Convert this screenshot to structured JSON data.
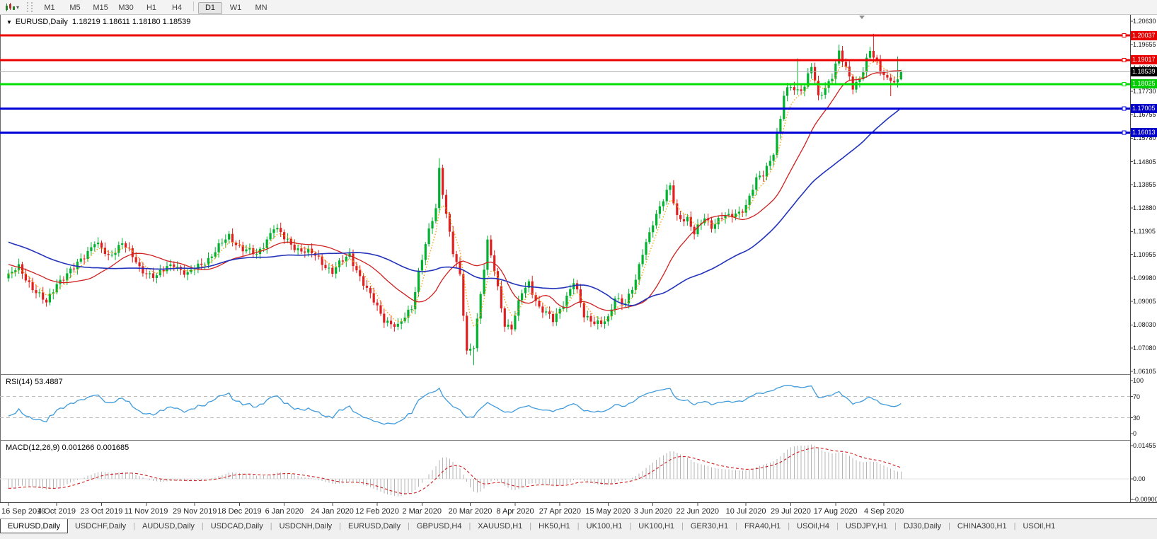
{
  "toolbar": {
    "timeframe_groups": [
      [
        "M1",
        "M5",
        "M15",
        "M30",
        "H1",
        "H4"
      ],
      [
        "D1",
        "W1",
        "MN"
      ]
    ],
    "active_timeframe": "D1",
    "dropdown_caret": "▾"
  },
  "title": {
    "dropdown_glyph": "▼",
    "symbol": "EURUSD,Daily",
    "ohlc_text": "1.18219 1.18611 1.18180 1.18539"
  },
  "rsi": {
    "text": "RSI(14) 53.4887",
    "axis_labels": [
      "100",
      "70",
      "30",
      "0"
    ],
    "axis_values": [
      100,
      70,
      30,
      0
    ],
    "guides": [
      70,
      30
    ],
    "line_color": "#3f9bdc"
  },
  "macd": {
    "text": "MACD(12,26,9) 0.001266 0.001685",
    "axis_labels": [
      "0.01455",
      "0.00",
      "-0.00900"
    ],
    "axis_values": [
      0.01455,
      0,
      -0.009
    ],
    "bar_color": "#b4b4b4",
    "signal_color": "#d02020"
  },
  "tabs": {
    "items": [
      "EURUSD,Daily",
      "USDCHF,Daily",
      "AUDUSD,Daily",
      "USDCAD,Daily",
      "USDCNH,Daily",
      "EURUSD,Daily",
      "GBPUSD,H4",
      "XAUUSD,H1",
      "HK50,H1",
      "UK100,H1",
      "UK100,H1",
      "GER30,H1",
      "FRA40,H1",
      "USOil,H4",
      "USDJPY,H1",
      "DJ30,Daily",
      "CHINA300,H1",
      "USOil,H1"
    ],
    "active_index": 0,
    "scroll_left": "◀",
    "scroll_right": "▶"
  },
  "chart_data": {
    "type": "candlestick",
    "symbol": "EURUSD",
    "timeframe": "Daily",
    "ohlc_current": {
      "open": 1.18219,
      "high": 1.18611,
      "low": 1.1818,
      "close": 1.18539
    },
    "ylim": [
      1.06105,
      1.2063
    ],
    "y_ticks": [
      1.2063,
      1.19655,
      1.1868,
      1.1773,
      1.16755,
      1.1578,
      1.14805,
      1.13855,
      1.1288,
      1.11905,
      1.10955,
      1.0998,
      1.09005,
      1.0803,
      1.0708,
      1.06105
    ],
    "x_date_ticks": [
      [
        0,
        "16 Sep 2019"
      ],
      [
        14,
        "4 Oct 2019"
      ],
      [
        27,
        "23 Oct 2019"
      ],
      [
        40,
        "11 Nov 2019"
      ],
      [
        54,
        "29 Nov 2019"
      ],
      [
        67,
        "18 Dec 2019"
      ],
      [
        80,
        "6 Jan 2020"
      ],
      [
        94,
        "24 Jan 2020"
      ],
      [
        107,
        "12 Feb 2020"
      ],
      [
        120,
        "2 Mar 2020"
      ],
      [
        134,
        "20 Mar 2020"
      ],
      [
        147,
        "8 Apr 2020"
      ],
      [
        160,
        "27 Apr 2020"
      ],
      [
        174,
        "15 May 2020"
      ],
      [
        187,
        "3 Jun 2020"
      ],
      [
        200,
        "22 Jun 2020"
      ],
      [
        214,
        "10 Jul 2020"
      ],
      [
        227,
        "29 Jul 2020"
      ],
      [
        240,
        "17 Aug 2020"
      ],
      [
        254,
        "4 Sep 2020"
      ]
    ],
    "days": 260,
    "last_close": 1.18539,
    "close_anchors": [
      [
        -50,
        1.1285
      ],
      [
        -35,
        1.1215
      ],
      [
        -20,
        1.113
      ],
      [
        -8,
        1.1035
      ],
      [
        0,
        1.1005
      ],
      [
        3,
        1.104
      ],
      [
        8,
        1.094
      ],
      [
        11,
        1.089
      ],
      [
        14,
        1.098
      ],
      [
        19,
        1.1035
      ],
      [
        25,
        1.115
      ],
      [
        29,
        1.108
      ],
      [
        33,
        1.1152
      ],
      [
        38,
        1.1035
      ],
      [
        43,
        1.1005
      ],
      [
        48,
        1.106
      ],
      [
        52,
        1.101
      ],
      [
        58,
        1.108
      ],
      [
        64,
        1.117
      ],
      [
        68,
        1.112
      ],
      [
        72,
        1.109
      ],
      [
        77,
        1.121
      ],
      [
        80,
        1.116
      ],
      [
        84,
        1.112
      ],
      [
        89,
        1.109
      ],
      [
        94,
        1.1025
      ],
      [
        99,
        1.1095
      ],
      [
        104,
        1.0945
      ],
      [
        109,
        1.083
      ],
      [
        113,
        1.079
      ],
      [
        117,
        1.088
      ],
      [
        119,
        1.1025
      ],
      [
        121,
        1.1135
      ],
      [
        124,
        1.1285
      ],
      [
        125,
        1.145
      ],
      [
        127,
        1.127
      ],
      [
        129,
        1.1105
      ],
      [
        131,
        1.1
      ],
      [
        133,
        1.069
      ],
      [
        135,
        1.0725
      ],
      [
        139,
        1.114
      ],
      [
        141,
        1.103
      ],
      [
        144,
        1.081
      ],
      [
        146,
        1.079
      ],
      [
        149,
        1.0935
      ],
      [
        151,
        1.098
      ],
      [
        154,
        1.0875
      ],
      [
        158,
        1.082
      ],
      [
        163,
        1.095
      ],
      [
        164,
        1.098
      ],
      [
        167,
        1.084
      ],
      [
        172,
        1.081
      ],
      [
        174,
        1.082
      ],
      [
        176,
        1.0915
      ],
      [
        179,
        1.09
      ],
      [
        182,
        1.098
      ],
      [
        184,
        1.11
      ],
      [
        187,
        1.1235
      ],
      [
        189,
        1.1292
      ],
      [
        192,
        1.1374
      ],
      [
        194,
        1.1255
      ],
      [
        197,
        1.1245
      ],
      [
        199,
        1.1177
      ],
      [
        202,
        1.125
      ],
      [
        204,
        1.1218
      ],
      [
        207,
        1.125
      ],
      [
        209,
        1.1248
      ],
      [
        212,
        1.1275
      ],
      [
        214,
        1.13
      ],
      [
        217,
        1.14
      ],
      [
        219,
        1.1428
      ],
      [
        222,
        1.1525
      ],
      [
        224,
        1.1656
      ],
      [
        225,
        1.1752
      ],
      [
        227,
        1.179
      ],
      [
        229,
        1.1778
      ],
      [
        231,
        1.18
      ],
      [
        233,
        1.1875
      ],
      [
        235,
        1.174
      ],
      [
        237,
        1.179
      ],
      [
        239,
        1.1842
      ],
      [
        241,
        1.1933
      ],
      [
        243,
        1.186
      ],
      [
        245,
        1.179
      ],
      [
        247,
        1.183
      ],
      [
        249,
        1.1904
      ],
      [
        250,
        1.1936
      ],
      [
        251,
        1.1911
      ],
      [
        253,
        1.1853
      ],
      [
        254,
        1.184
      ],
      [
        256,
        1.1815
      ],
      [
        258,
        1.18219
      ],
      [
        259,
        1.18539
      ]
    ],
    "wick_overrides": {
      "11": {
        "l": 1.0879
      },
      "125": {
        "h": 1.1495
      },
      "133": {
        "l": 1.068
      },
      "135": {
        "l": 1.0636
      },
      "229": {
        "h": 1.1909
      },
      "241": {
        "h": 1.1966
      },
      "251": {
        "h": 1.2011
      },
      "256": {
        "l": 1.1752
      },
      "258": {
        "h": 1.1917
      },
      "259": {
        "h": 1.18611,
        "l": 1.1818
      }
    },
    "up_color": "#00b22d",
    "down_color": "#e02020",
    "overlays": [
      {
        "name": "ma-fast",
        "type": "ema",
        "period": 5,
        "style": "dotted",
        "color": "#ff9c00"
      },
      {
        "name": "ma-mid",
        "type": "sma",
        "period": 20,
        "style": "solid",
        "color": "#d02020"
      },
      {
        "name": "ma-slow",
        "type": "sma",
        "period": 50,
        "style": "solid",
        "color": "#2233bb"
      }
    ],
    "h_lines": [
      {
        "value": 1.20037,
        "label": "1.20037",
        "color": "#ee0000",
        "badge": "#e80000",
        "width": 3
      },
      {
        "value": 1.19017,
        "label": "1.19017",
        "color": "#ee0000",
        "badge": "#e80000",
        "width": 3
      },
      {
        "value": 1.18539,
        "label": "1.18539",
        "color": "#b0b0b0",
        "badge": "#000000",
        "width": 1,
        "role": "current-price"
      },
      {
        "value": 1.18025,
        "label": "1.18025",
        "color": "#00dd00",
        "badge": "#00cc00",
        "width": 3
      },
      {
        "value": 1.17005,
        "label": "1.17005",
        "color": "#0000d8",
        "badge": "#0000c8",
        "width": 3
      },
      {
        "value": 1.16013,
        "label": "1.16013",
        "color": "#0000d8",
        "badge": "#0000c8",
        "width": 3
      }
    ],
    "indicators": [
      {
        "name": "RSI",
        "period": 14,
        "current": 53.4887,
        "range": [
          0,
          100
        ],
        "guides": [
          70,
          30
        ]
      },
      {
        "name": "MACD",
        "params": [
          12,
          26,
          9
        ],
        "current": [
          0.001266,
          0.001685
        ],
        "axis": [
          0.01455,
          0,
          -0.009
        ]
      }
    ]
  }
}
